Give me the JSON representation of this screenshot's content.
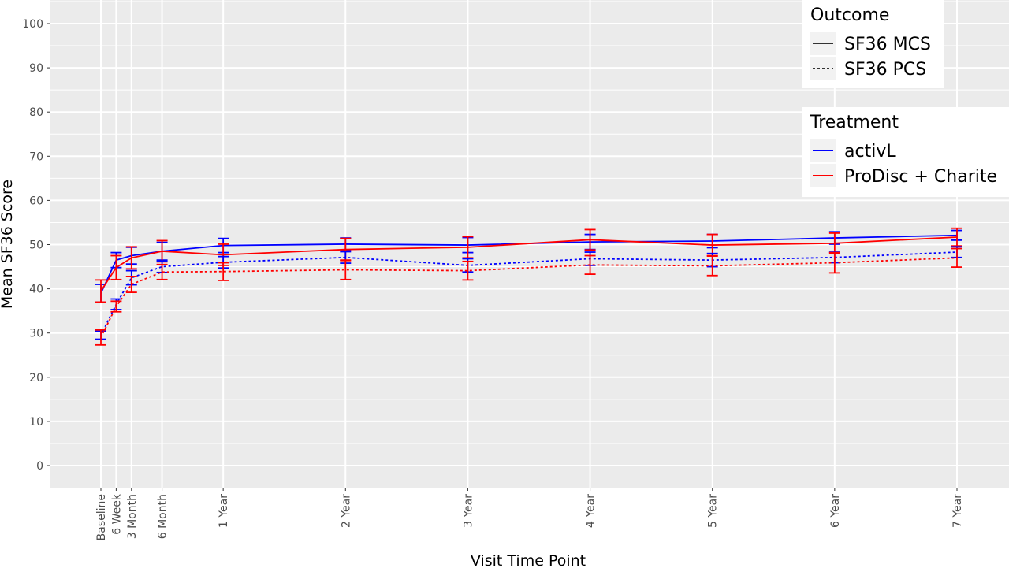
{
  "chart_data": {
    "type": "line",
    "xlabel": "Visit Time Point",
    "ylabel": "Mean SF36 Score",
    "ylim": [
      -5,
      105
    ],
    "yticks": [
      0,
      10,
      20,
      30,
      40,
      50,
      60,
      70,
      80,
      90,
      100
    ],
    "grid": true,
    "legend_position": "top-right",
    "categories": [
      "Baseline",
      "6 Week",
      "3 Month",
      "6 Month",
      "1 Year",
      "2 Year",
      "3 Year",
      "4 Year",
      "5 Year",
      "6 Year",
      "7 Year"
    ],
    "x_months": [
      0,
      1.5,
      3,
      6,
      12,
      24,
      36,
      48,
      60,
      72,
      84
    ],
    "legends": [
      {
        "title": "Outcome",
        "entries": [
          {
            "label": "SF36 MCS",
            "style": "solid",
            "color": "#333333"
          },
          {
            "label": "SF36 PCS",
            "style": "dotted",
            "color": "#333333"
          }
        ]
      },
      {
        "title": "Treatment",
        "entries": [
          {
            "label": "activL",
            "style": "solid",
            "color": "#0000ff"
          },
          {
            "label": "ProDisc + Charite",
            "style": "solid",
            "color": "#ff0000"
          }
        ]
      }
    ],
    "series": [
      {
        "outcome": "SF36 MCS",
        "treatment": "activL",
        "color": "#0000ff",
        "style": "solid",
        "values": [
          39.0,
          46.5,
          47.5,
          48.5,
          49.8,
          50.1,
          49.9,
          50.6,
          50.8,
          51.5,
          52.1
        ],
        "lower": [
          37.0,
          44.8,
          45.6,
          46.5,
          48.2,
          48.7,
          48.2,
          48.9,
          49.3,
          50.1,
          51.0
        ],
        "upper": [
          41.0,
          48.2,
          49.4,
          50.5,
          51.4,
          51.5,
          51.6,
          52.3,
          52.3,
          52.9,
          53.2
        ]
      },
      {
        "outcome": "SF36 MCS",
        "treatment": "ProDisc + Charite",
        "color": "#ff0000",
        "style": "solid",
        "values": [
          39.5,
          44.8,
          47.0,
          48.5,
          47.7,
          48.9,
          49.4,
          51.1,
          49.9,
          50.3,
          51.7
        ],
        "lower": [
          37.0,
          42.1,
          44.5,
          46.1,
          45.3,
          46.4,
          47.0,
          48.8,
          47.5,
          48.0,
          49.7
        ],
        "upper": [
          42.0,
          47.5,
          49.5,
          50.9,
          50.1,
          51.4,
          51.8,
          53.4,
          52.3,
          52.6,
          53.7
        ]
      },
      {
        "outcome": "SF36 PCS",
        "treatment": "activL",
        "color": "#0000ff",
        "style": "dotted",
        "values": [
          29.5,
          36.5,
          42.5,
          45.0,
          46.0,
          47.1,
          45.3,
          46.8,
          46.5,
          47.1,
          48.3
        ],
        "lower": [
          28.6,
          35.3,
          40.9,
          43.7,
          44.7,
          45.8,
          43.8,
          45.3,
          45.0,
          45.9,
          47.1
        ],
        "upper": [
          30.4,
          37.7,
          44.1,
          46.3,
          47.3,
          48.4,
          46.8,
          48.3,
          48.0,
          48.3,
          49.5
        ]
      },
      {
        "outcome": "SF36 PCS",
        "treatment": "ProDisc + Charite",
        "color": "#ff0000",
        "style": "dotted",
        "values": [
          29.0,
          36.0,
          41.0,
          43.8,
          43.9,
          44.3,
          44.1,
          45.4,
          45.2,
          45.9,
          47.0
        ],
        "lower": [
          27.3,
          34.8,
          39.2,
          42.1,
          41.9,
          42.1,
          42.0,
          43.3,
          43.0,
          43.6,
          44.9
        ],
        "upper": [
          30.7,
          37.2,
          42.8,
          45.5,
          45.9,
          46.5,
          46.2,
          47.5,
          47.4,
          48.2,
          49.1
        ]
      }
    ]
  }
}
